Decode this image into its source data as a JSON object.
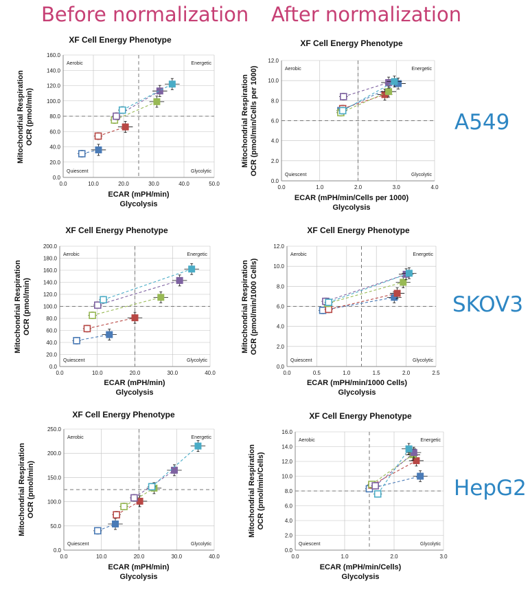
{
  "headers": {
    "before": "Before normalization",
    "after": "After normalization"
  },
  "cell_lines": [
    "A549",
    "SKOV3",
    "HepG2"
  ],
  "colors": {
    "blue": "#4a7bb7",
    "red": "#b84744",
    "green": "#98b954",
    "purple": "#7e62a1",
    "teal": "#4aacc6",
    "grid": "#bfbfbf",
    "axis": "#888888"
  },
  "chart_data": [
    {
      "type": "scatter",
      "title": "XF Cell Energy Phenotype",
      "ylabel": [
        "Mitochondrial Respiration",
        "OCR (pmol/min)"
      ],
      "xlabel": [
        "ECAR (mPH/min)",
        "Glycolysis"
      ],
      "xticks": [
        "0.0",
        "10.0",
        "20.0",
        "30.0",
        "40.0",
        "50.0"
      ],
      "yticks": [
        "0.0",
        "20.0",
        "40.0",
        "60.0",
        "80.0",
        "100.0",
        "120.0",
        "140.0",
        "160.0"
      ],
      "xlim": [
        0,
        50
      ],
      "ylim": [
        0,
        160
      ],
      "quadrants": {
        "tl": "Aerobic",
        "tr": "Energetic",
        "bl": "Quiescent",
        "br": "Glycolytic"
      },
      "series": [
        {
          "color": "blue",
          "from": [
            6.2,
            31
          ],
          "to": [
            11.7,
            36
          ]
        },
        {
          "color": "red",
          "from": [
            11.6,
            54
          ],
          "to": [
            20.6,
            66
          ]
        },
        {
          "color": "green",
          "from": [
            17.0,
            75
          ],
          "to": [
            31.0,
            99
          ]
        },
        {
          "color": "purple",
          "from": [
            17.6,
            80
          ],
          "to": [
            32.0,
            113
          ]
        },
        {
          "color": "teal",
          "from": [
            19.6,
            88
          ],
          "to": [
            36.1,
            122
          ]
        }
      ]
    },
    {
      "type": "scatter",
      "title": "XF Cell Energy Phenotype",
      "ylabel": [
        "Mitochondrial Respiration",
        "OCR (pmol/min/Cells per 1000)"
      ],
      "xlabel": [
        "ECAR (mPH/min/Cells per 1000)",
        "Glycolysis"
      ],
      "xticks": [
        "0.0",
        "1.0",
        "2.0",
        "3.0",
        "4.0"
      ],
      "yticks": [
        "0.0",
        "2.0",
        "4.0",
        "6.0",
        "8.0",
        "10.0",
        "12.0"
      ],
      "xlim": [
        0,
        4
      ],
      "ylim": [
        0,
        12
      ],
      "quadrants": {
        "tl": "Aerobic",
        "tr": "Energetic",
        "bl": "Quiescent",
        "br": "Glycolytic"
      },
      "series": [
        {
          "color": "blue",
          "from": [
            1.55,
            7.0
          ],
          "to": [
            3.05,
            9.7
          ]
        },
        {
          "color": "red",
          "from": [
            1.6,
            7.2
          ],
          "to": [
            2.7,
            8.6
          ]
        },
        {
          "color": "green",
          "from": [
            1.55,
            6.8
          ],
          "to": [
            2.8,
            8.9
          ]
        },
        {
          "color": "purple",
          "from": [
            1.62,
            8.4
          ],
          "to": [
            2.8,
            9.8
          ]
        },
        {
          "color": "teal",
          "from": [
            1.6,
            7.0
          ],
          "to": [
            2.95,
            9.9
          ]
        }
      ]
    },
    {
      "type": "scatter",
      "title": "XF Cell Energy Phenotype",
      "ylabel": [
        "Mitochondrial Respiration",
        "OCR (pmol/min)"
      ],
      "xlabel": [
        "ECAR (mPH/min)",
        "Glycolysis"
      ],
      "xticks": [
        "0.0",
        "10.0",
        "20.0",
        "30.0",
        "40.0"
      ],
      "yticks": [
        "0.0",
        "20.0",
        "40.0",
        "60.0",
        "80.0",
        "100.0",
        "120.0",
        "140.0",
        "160.0",
        "180.0",
        "200.0"
      ],
      "xlim": [
        0,
        40
      ],
      "ylim": [
        0,
        200
      ],
      "quadrants": {
        "tl": "Aerobic",
        "tr": "Energetic",
        "bl": "Quiescent",
        "br": "Glycolytic"
      },
      "series": [
        {
          "color": "blue",
          "from": [
            4.5,
            43
          ],
          "to": [
            13.2,
            53
          ]
        },
        {
          "color": "red",
          "from": [
            7.3,
            63
          ],
          "to": [
            20.0,
            81
          ]
        },
        {
          "color": "green",
          "from": [
            8.7,
            85
          ],
          "to": [
            26.9,
            115
          ]
        },
        {
          "color": "purple",
          "from": [
            10.1,
            102
          ],
          "to": [
            31.9,
            143
          ]
        },
        {
          "color": "teal",
          "from": [
            11.6,
            111
          ],
          "to": [
            35.1,
            162
          ]
        }
      ]
    },
    {
      "type": "scatter",
      "title": "XF Cell Energy Phenotype",
      "ylabel": [
        "Mitochondrial Respiration",
        "OCR (pmol/min/1000 Cells)"
      ],
      "xlabel": [
        "ECAR (mPH/min/1000 Cells)",
        "Glycolysis"
      ],
      "xticks": [
        "0.0",
        "0.5",
        "1.0",
        "1.5",
        "2.0",
        "2.5"
      ],
      "yticks": [
        "0.0",
        "2.0",
        "4.0",
        "6.0",
        "8.0",
        "10.0",
        "12.0"
      ],
      "xlim": [
        0,
        2.5
      ],
      "ylim": [
        0,
        12
      ],
      "quadrants": {
        "tl": "Aerobic",
        "tr": "Energetic",
        "bl": "Quiescent",
        "br": "Glycolytic"
      },
      "series": [
        {
          "color": "blue",
          "from": [
            0.6,
            5.6
          ],
          "to": [
            1.8,
            6.9
          ]
        },
        {
          "color": "red",
          "from": [
            0.7,
            5.7
          ],
          "to": [
            1.85,
            7.3
          ]
        },
        {
          "color": "green",
          "from": [
            0.68,
            6.3
          ],
          "to": [
            1.95,
            8.4
          ]
        },
        {
          "color": "purple",
          "from": [
            0.65,
            6.5
          ],
          "to": [
            2.0,
            9.2
          ]
        },
        {
          "color": "teal",
          "from": [
            0.7,
            6.4
          ],
          "to": [
            2.05,
            9.3
          ]
        }
      ]
    },
    {
      "type": "scatter",
      "title": "XF Cell Energy Phenotype",
      "ylabel": [
        "Mitochondrial Respiration",
        "OCR (pmol/min)"
      ],
      "xlabel": [
        "ECAR (mPH/min)",
        "Glycolysis"
      ],
      "xticks": [
        "0.0",
        "10.0",
        "20.0",
        "30.0",
        "40.0"
      ],
      "yticks": [
        "0.0",
        "50.0",
        "100.0",
        "150.0",
        "200.0",
        "250.0"
      ],
      "xlim": [
        0,
        40
      ],
      "ylim": [
        0,
        250
      ],
      "quadrants": {
        "tl": "Aerobic",
        "tr": "Energetic",
        "bl": "Quiescent",
        "br": "Glycolytic"
      },
      "series": [
        {
          "color": "blue",
          "from": [
            9.0,
            40
          ],
          "to": [
            13.7,
            54
          ]
        },
        {
          "color": "red",
          "from": [
            14.0,
            73
          ],
          "to": [
            20.2,
            101
          ]
        },
        {
          "color": "green",
          "from": [
            16.0,
            90
          ],
          "to": [
            24.0,
            128
          ]
        },
        {
          "color": "purple",
          "from": [
            18.7,
            108
          ],
          "to": [
            29.4,
            165
          ]
        },
        {
          "color": "teal",
          "from": [
            23.4,
            131
          ],
          "to": [
            35.7,
            215
          ]
        }
      ]
    },
    {
      "type": "scatter",
      "title": "XF Cell Energy Phenotype",
      "ylabel": [
        "Mitochondrial Respiration",
        "OCR (pmol/min/Cells)"
      ],
      "xlabel": [
        "ECAR (mPH/min/Cells)",
        "Glycolysis"
      ],
      "xticks": [
        "0.0",
        "1.0",
        "2.0",
        "3.0"
      ],
      "yticks": [
        "0.0",
        "2.0",
        "4.0",
        "6.0",
        "8.0",
        "10.0",
        "12.0",
        "14.0",
        "16.0"
      ],
      "xlim": [
        0,
        3
      ],
      "ylim": [
        0,
        16
      ],
      "quadrants": {
        "tl": "Aerobic",
        "tr": "Energetic",
        "bl": "Quiescent",
        "br": "Glycolytic"
      },
      "series": [
        {
          "color": "blue",
          "from": [
            1.5,
            8.3
          ],
          "to": [
            2.53,
            10.0
          ]
        },
        {
          "color": "red",
          "from": [
            1.55,
            8.8
          ],
          "to": [
            2.45,
            12.1
          ]
        },
        {
          "color": "green",
          "from": [
            1.55,
            8.9
          ],
          "to": [
            2.38,
            12.9
          ]
        },
        {
          "color": "purple",
          "from": [
            1.62,
            8.7
          ],
          "to": [
            2.4,
            13.2
          ]
        },
        {
          "color": "teal",
          "from": [
            1.67,
            7.6
          ],
          "to": [
            2.3,
            13.7
          ]
        }
      ]
    }
  ]
}
